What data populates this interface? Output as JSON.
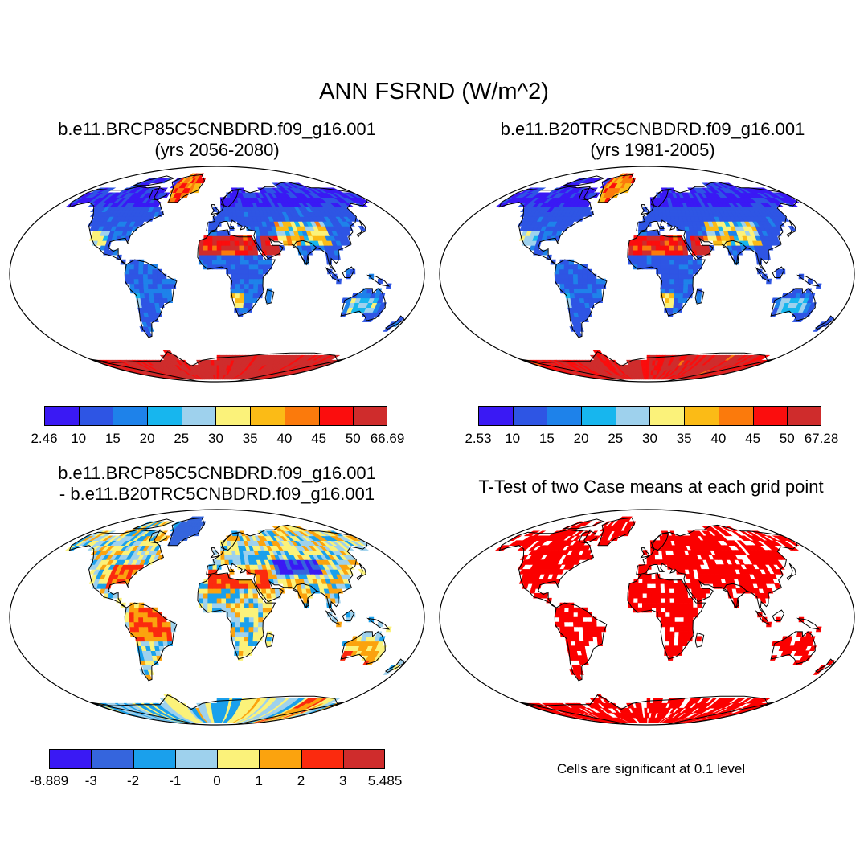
{
  "main_title": "ANN FSRND (W/m^2)",
  "panels": [
    {
      "id": "case1",
      "title_line1": "b.e11.BRCP85C5CNBDRD.f09_g16.001",
      "title_line2": "(yrs 2056-2080)",
      "map_kind": "absolute",
      "scale": 1.0
    },
    {
      "id": "case2",
      "title_line1": "b.e11.B20TRC5CNBDRD.f09_g16.001",
      "title_line2": "(yrs 1981-2005)",
      "map_kind": "absolute",
      "scale": 0.96
    },
    {
      "id": "diff",
      "title_line1": "b.e11.BRCP85C5CNBDRD.f09_g16.001",
      "title_line2": "- b.e11.B20TRC5CNBDRD.f09_g16.001",
      "map_kind": "difference"
    },
    {
      "id": "ttest",
      "title_line1": "T-Test of two Case means at each grid point",
      "title_line2": "",
      "map_kind": "significance"
    }
  ],
  "colorbars": {
    "case1": {
      "labels": [
        "2.46",
        "10",
        "15",
        "20",
        "25",
        "30",
        "35",
        "40",
        "45",
        "50",
        "66.69"
      ],
      "colors": [
        "#3a19f4",
        "#2e55e4",
        "#1e82ea",
        "#17b6ee",
        "#9ed1ed",
        "#fbf27a",
        "#fbbb16",
        "#fb7a0c",
        "#fb0d0d",
        "#cf2c2c"
      ]
    },
    "case2": {
      "labels": [
        "2.53",
        "10",
        "15",
        "20",
        "25",
        "30",
        "35",
        "40",
        "45",
        "50",
        "67.28"
      ],
      "colors": [
        "#3a19f4",
        "#2e55e4",
        "#1e82ea",
        "#17b6ee",
        "#9ed1ed",
        "#fbf27a",
        "#fbbb16",
        "#fb7a0c",
        "#fb0d0d",
        "#cf2c2c"
      ]
    },
    "diff": {
      "labels": [
        "-8.889",
        "-3",
        "-2",
        "-1",
        "0",
        "1",
        "2",
        "3",
        "5.485"
      ],
      "colors": [
        "#3a19f4",
        "#3565dd",
        "#1aa0ec",
        "#9ed1ed",
        "#fbf27a",
        "#fba30e",
        "#fb2a0e",
        "#cf2c2c"
      ]
    }
  },
  "ttest_note": "Cells are significant at 0.1 level",
  "significance_color": "#fb0000"
}
